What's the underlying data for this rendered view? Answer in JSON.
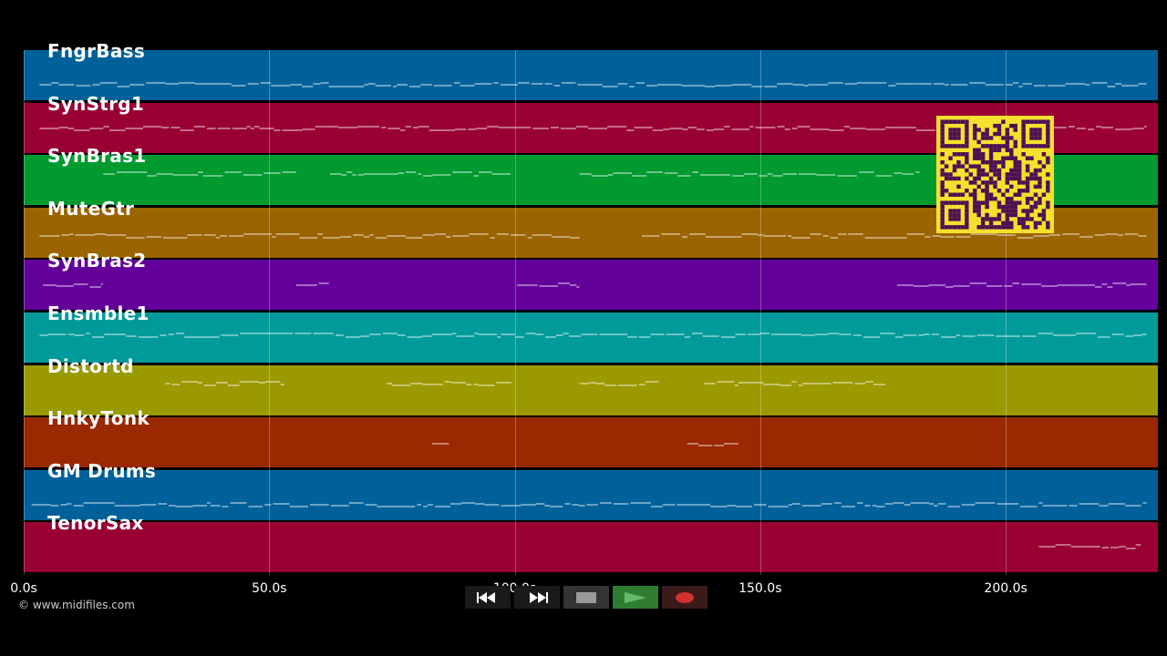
{
  "tracks": [
    {
      "name": "FngrBass",
      "color": "#00619a"
    },
    {
      "name": "SynStrg1",
      "color": "#990033"
    },
    {
      "name": "SynBras1",
      "color": "#009a2f"
    },
    {
      "name": "MuteGtr",
      "color": "#9a6400"
    },
    {
      "name": "SynBras2",
      "color": "#64009a"
    },
    {
      "name": "Ensmble1",
      "color": "#009a9a"
    },
    {
      "name": "Distortd",
      "color": "#9a9a00"
    },
    {
      "name": "HnkyTonk",
      "color": "#9a2800"
    },
    {
      "name": "GM Drums",
      "color": "#00619a"
    },
    {
      "name": "TenorSax",
      "color": "#990033"
    }
  ],
  "time_axis": {
    "ticks": [
      "0.0s",
      "50.0s",
      "100.0s",
      "150.0s",
      "200.0s"
    ],
    "tick_values": [
      0,
      50,
      100,
      150,
      200
    ],
    "max_seconds": 231
  },
  "copyright": "© www.midifiles.com",
  "transport": {
    "rewind_icon": "rewind-icon",
    "fast_forward_icon": "fast-forward-icon",
    "stop_icon": "stop-icon",
    "play_icon": "play-icon",
    "record_icon": "record-icon"
  },
  "colors": {
    "background": "#000000",
    "qr_background": "#f5e02e",
    "qr_foreground": "#4a1052",
    "play_button": "#2e7d32",
    "record_button": "#d32f2f"
  }
}
